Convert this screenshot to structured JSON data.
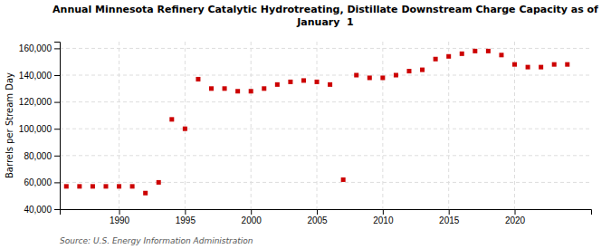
{
  "chart_data": {
    "type": "scatter",
    "title": "Annual Minnesota Refinery Catalytic Hydrotreating, Distillate Downstream Charge Capacity as of\nJanuary  1",
    "ylabel": "Barrels per Stream Day",
    "source": "Source: U.S. Energy Information Administration",
    "color": "#cc0000",
    "marker": "square",
    "grid": true,
    "xlim": [
      1985.5,
      2025.8
    ],
    "xticks": [
      1990,
      1995,
      2000,
      2005,
      2010,
      2015,
      2020
    ],
    "ylim": [
      40000,
      165000
    ],
    "yticks": [
      {
        "value": 40000,
        "label": "40,000"
      },
      {
        "value": 60000,
        "label": "60,000"
      },
      {
        "value": 80000,
        "label": "80,000"
      },
      {
        "value": 100000,
        "label": "100,000"
      },
      {
        "value": 120000,
        "label": "120,000"
      },
      {
        "value": 140000,
        "label": "140,000"
      },
      {
        "value": 160000,
        "label": "160,000"
      }
    ],
    "x": [
      1986,
      1987,
      1988,
      1989,
      1990,
      1991,
      1992,
      1993,
      1994,
      1995,
      1996,
      1997,
      1998,
      1999,
      2000,
      2001,
      2002,
      2003,
      2004,
      2005,
      2006,
      2007,
      2008,
      2009,
      2010,
      2011,
      2012,
      2013,
      2014,
      2015,
      2016,
      2017,
      2018,
      2019,
      2020,
      2021,
      2022,
      2023,
      2024
    ],
    "values": [
      57000,
      57000,
      57000,
      57000,
      57000,
      57000,
      52000,
      60000,
      107000,
      100000,
      137000,
      130000,
      130000,
      128000,
      128000,
      130000,
      133000,
      135000,
      136000,
      135000,
      133000,
      62000,
      140000,
      138000,
      138000,
      140000,
      143000,
      144000,
      152000,
      154000,
      156000,
      158000,
      158000,
      155000,
      148000,
      146000,
      146000,
      148000,
      148000
    ]
  }
}
